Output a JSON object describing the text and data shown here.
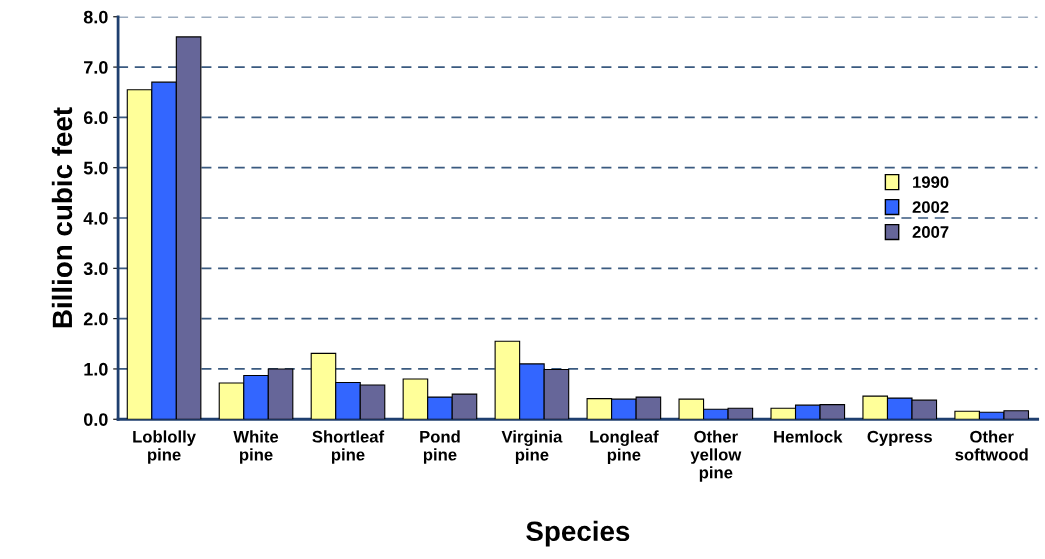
{
  "chart_data": {
    "type": "bar",
    "xlabel": "Species",
    "ylabel": "Billion cubic feet",
    "categories": [
      "Loblolly\npine",
      "White\npine",
      "Shortleaf\npine",
      "Pond\npine",
      "Virginia\npine",
      "Longleaf\npine",
      "Other\nyellow\npine",
      "Hemlock",
      "Cypress",
      "Other\nsoftwood"
    ],
    "series": [
      {
        "name": "1990",
        "color": "#ffff99",
        "values": [
          6.55,
          0.72,
          1.31,
          0.8,
          1.55,
          0.41,
          0.4,
          0.22,
          0.46,
          0.16
        ]
      },
      {
        "name": "2002",
        "color": "#3366ff",
        "values": [
          6.7,
          0.87,
          0.73,
          0.44,
          1.1,
          0.4,
          0.2,
          0.28,
          0.42,
          0.14
        ]
      },
      {
        "name": "2007",
        "color": "#666699",
        "values": [
          7.6,
          1.0,
          0.68,
          0.5,
          0.99,
          0.44,
          0.22,
          0.29,
          0.38,
          0.17
        ]
      }
    ],
    "ylim": [
      0,
      8
    ],
    "yticks": [
      {
        "value": 0,
        "label": "0.0"
      },
      {
        "value": 1,
        "label": "1.0"
      },
      {
        "value": 2,
        "label": "2.0"
      },
      {
        "value": 3,
        "label": "3.0"
      },
      {
        "value": 4,
        "label": "4.0"
      },
      {
        "value": 5,
        "label": "5.0"
      },
      {
        "value": 6,
        "label": "6.0"
      },
      {
        "value": 7,
        "label": "7.0"
      },
      {
        "value": 8,
        "label": "8.0"
      }
    ],
    "grid": "y",
    "legend": "center right"
  }
}
